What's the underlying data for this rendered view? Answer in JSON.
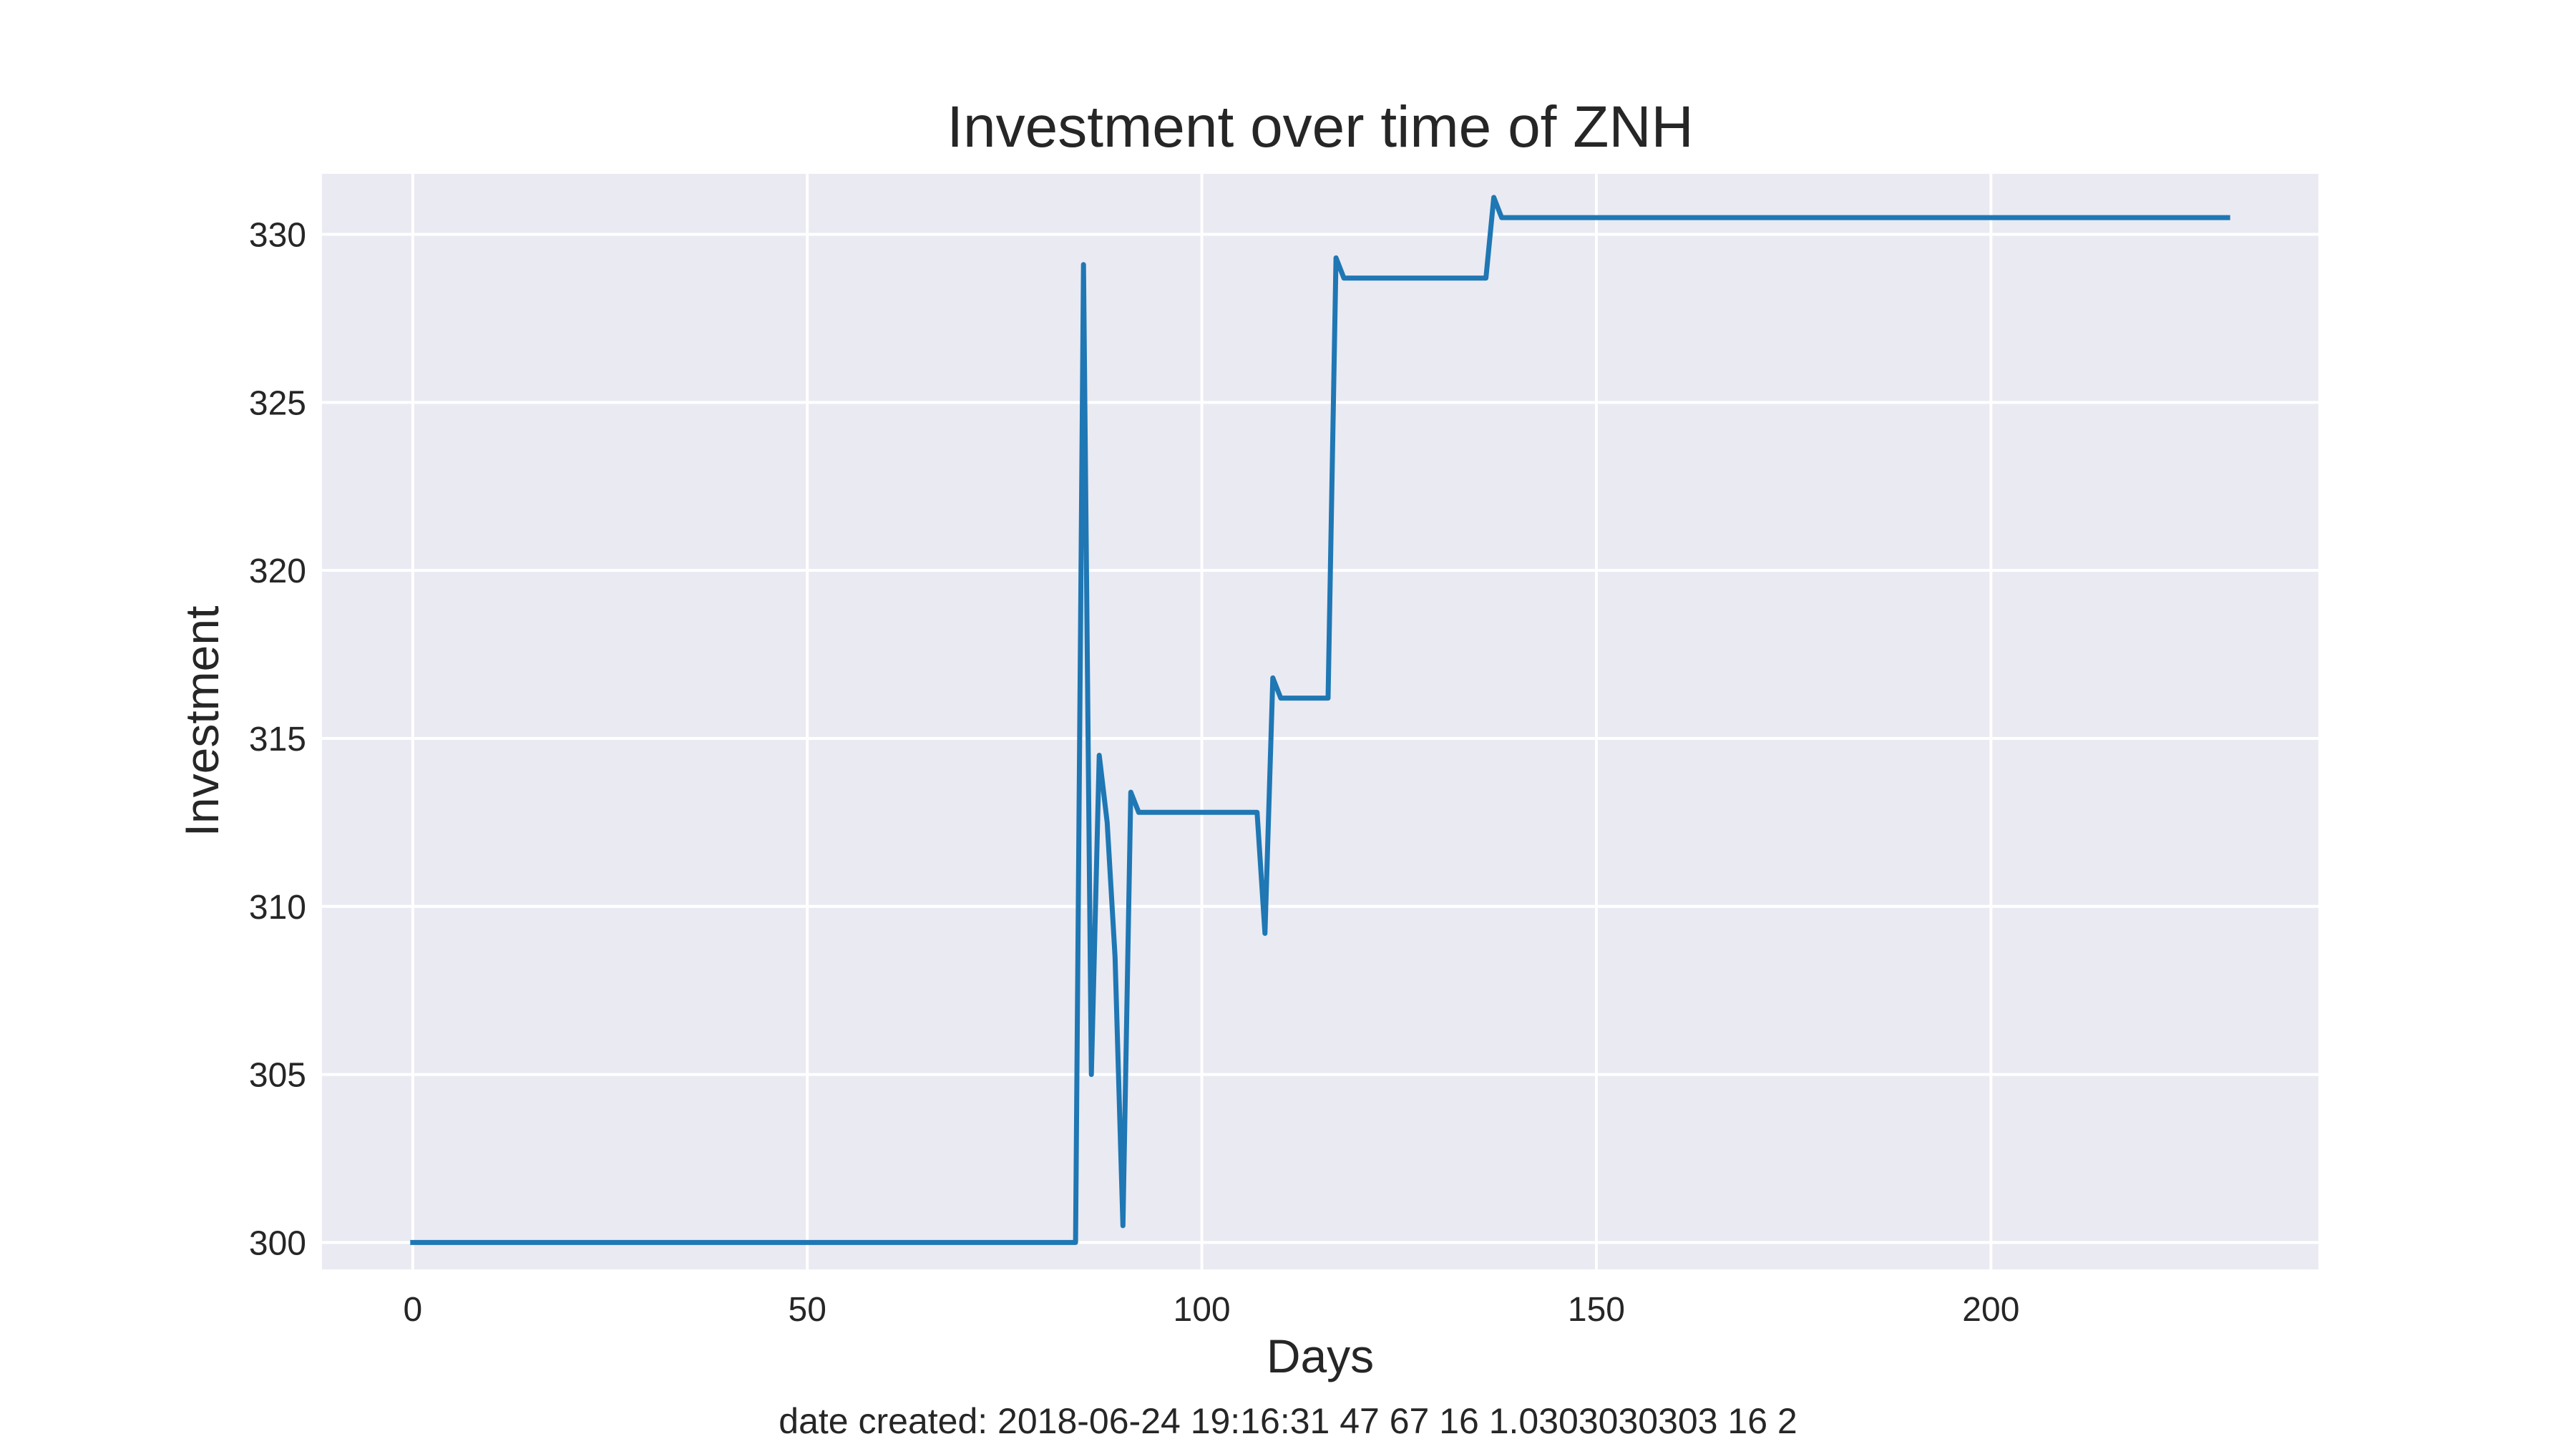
{
  "chart_data": {
    "type": "line",
    "title": "Investment over time of ZNH",
    "xlabel": "Days",
    "ylabel": "Investment",
    "footer": "date created: 2018-06-24 19:16:31 47 67 16 1.0303030303 16 2",
    "xlim": [
      -11.5,
      241.5
    ],
    "ylim": [
      299.2,
      331.8
    ],
    "xticks": [
      0,
      50,
      100,
      150,
      200
    ],
    "yticks": [
      300,
      305,
      310,
      315,
      320,
      325,
      330
    ],
    "grid": true,
    "style": "seaborn-darkgrid",
    "colors": {
      "plot_bg": "#eaeaf2",
      "grid": "#ffffff",
      "line": "#1f77b4",
      "text": "#262626"
    },
    "series": [
      {
        "x": [
          0,
          84,
          85,
          86,
          87,
          88,
          89,
          90,
          91,
          92,
          107,
          108,
          109,
          110,
          116,
          117,
          118,
          136,
          137,
          138,
          230
        ],
        "values": [
          300.0,
          300.0,
          329.1,
          305.0,
          314.5,
          312.5,
          308.5,
          300.5,
          313.4,
          312.8,
          312.8,
          309.2,
          316.8,
          316.2,
          316.2,
          329.3,
          328.7,
          328.7,
          331.1,
          330.5,
          330.5
        ]
      }
    ]
  }
}
